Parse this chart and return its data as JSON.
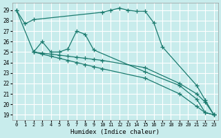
{
  "xlabel": "Humidex (Indice chaleur)",
  "bg_color": "#c8ecec",
  "grid_color": "#ffffff",
  "line_color": "#1a7a6e",
  "xlim": [
    -0.5,
    23.5
  ],
  "ylim": [
    18.5,
    29.7
  ],
  "xticks": [
    0,
    1,
    2,
    3,
    4,
    5,
    6,
    7,
    8,
    9,
    10,
    11,
    12,
    13,
    14,
    15,
    16,
    17,
    18,
    19,
    20,
    21,
    22,
    23
  ],
  "yticks": [
    19,
    20,
    21,
    22,
    23,
    24,
    25,
    26,
    27,
    28,
    29
  ],
  "series": [
    {
      "x": [
        0,
        1,
        2,
        10,
        11,
        12,
        13,
        14,
        15,
        16,
        17,
        21,
        22,
        23
      ],
      "y": [
        29,
        27.7,
        28.1,
        28.8,
        29.0,
        29.2,
        29.0,
        28.9,
        28.9,
        27.8,
        25.5,
        21.8,
        20.4,
        19.0
      ]
    },
    {
      "x": [
        0,
        2,
        3,
        4,
        5,
        6,
        7,
        8,
        9,
        15,
        19,
        21,
        22,
        23
      ],
      "y": [
        29,
        25.0,
        26.0,
        25.0,
        25.0,
        25.3,
        27.0,
        26.7,
        25.2,
        23.1,
        21.8,
        20.5,
        19.2,
        19.0
      ]
    },
    {
      "x": [
        2,
        3,
        4,
        5,
        6,
        7,
        8,
        9,
        10,
        15,
        19,
        21,
        22,
        23
      ],
      "y": [
        25.0,
        24.9,
        24.8,
        24.7,
        24.6,
        24.5,
        24.4,
        24.3,
        24.2,
        23.5,
        22.0,
        21.0,
        20.2,
        19.0
      ]
    },
    {
      "x": [
        2,
        3,
        4,
        5,
        6,
        7,
        8,
        9,
        10,
        15,
        19,
        21,
        22,
        23
      ],
      "y": [
        25.0,
        24.8,
        24.6,
        24.4,
        24.2,
        24.0,
        23.8,
        23.6,
        23.4,
        22.5,
        21.0,
        19.8,
        19.2,
        19.0
      ]
    }
  ]
}
